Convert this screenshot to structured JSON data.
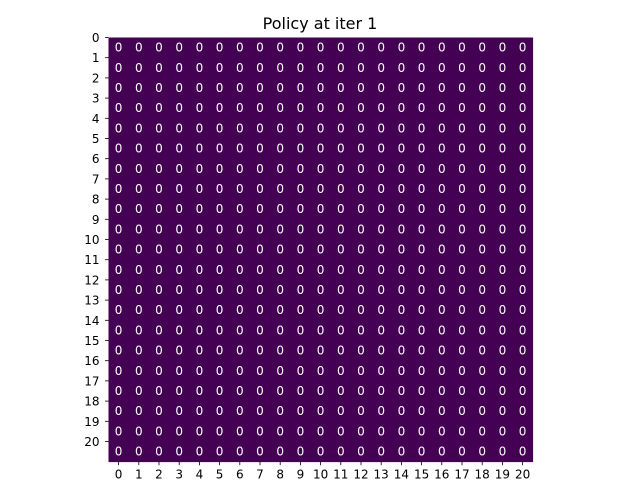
{
  "chart_data": {
    "type": "heatmap",
    "title": "Policy at iter 1",
    "xlabel": "",
    "ylabel": "",
    "x_ticks": [
      "0",
      "1",
      "2",
      "3",
      "4",
      "5",
      "6",
      "7",
      "8",
      "9",
      "10",
      "11",
      "12",
      "13",
      "14",
      "15",
      "16",
      "17",
      "18",
      "19",
      "20"
    ],
    "y_ticks": [
      "0",
      "1",
      "2",
      "3",
      "4",
      "5",
      "6",
      "7",
      "8",
      "9",
      "10",
      "11",
      "12",
      "13",
      "14",
      "15",
      "16",
      "17",
      "18",
      "19",
      "20"
    ],
    "values_note": "",
    "rows": 21,
    "cols": 21,
    "values": [
      [
        0,
        0,
        0,
        0,
        0,
        0,
        0,
        0,
        0,
        0,
        0,
        0,
        0,
        0,
        0,
        0,
        0,
        0,
        0,
        0,
        0
      ],
      [
        0,
        0,
        0,
        0,
        0,
        0,
        0,
        0,
        0,
        0,
        0,
        0,
        0,
        0,
        0,
        0,
        0,
        0,
        0,
        0,
        0
      ],
      [
        0,
        0,
        0,
        0,
        0,
        0,
        0,
        0,
        0,
        0,
        0,
        0,
        0,
        0,
        0,
        0,
        0,
        0,
        0,
        0,
        0
      ],
      [
        0,
        0,
        0,
        0,
        0,
        0,
        0,
        0,
        0,
        0,
        0,
        0,
        0,
        0,
        0,
        0,
        0,
        0,
        0,
        0,
        0
      ],
      [
        0,
        0,
        0,
        0,
        0,
        0,
        0,
        0,
        0,
        0,
        0,
        0,
        0,
        0,
        0,
        0,
        0,
        0,
        0,
        0,
        0
      ],
      [
        0,
        0,
        0,
        0,
        0,
        0,
        0,
        0,
        0,
        0,
        0,
        0,
        0,
        0,
        0,
        0,
        0,
        0,
        0,
        0,
        0
      ],
      [
        0,
        0,
        0,
        0,
        0,
        0,
        0,
        0,
        0,
        0,
        0,
        0,
        0,
        0,
        0,
        0,
        0,
        0,
        0,
        0,
        0
      ],
      [
        0,
        0,
        0,
        0,
        0,
        0,
        0,
        0,
        0,
        0,
        0,
        0,
        0,
        0,
        0,
        0,
        0,
        0,
        0,
        0,
        0
      ],
      [
        0,
        0,
        0,
        0,
        0,
        0,
        0,
        0,
        0,
        0,
        0,
        0,
        0,
        0,
        0,
        0,
        0,
        0,
        0,
        0,
        0
      ],
      [
        0,
        0,
        0,
        0,
        0,
        0,
        0,
        0,
        0,
        0,
        0,
        0,
        0,
        0,
        0,
        0,
        0,
        0,
        0,
        0,
        0
      ],
      [
        0,
        0,
        0,
        0,
        0,
        0,
        0,
        0,
        0,
        0,
        0,
        0,
        0,
        0,
        0,
        0,
        0,
        0,
        0,
        0,
        0
      ],
      [
        0,
        0,
        0,
        0,
        0,
        0,
        0,
        0,
        0,
        0,
        0,
        0,
        0,
        0,
        0,
        0,
        0,
        0,
        0,
        0,
        0
      ],
      [
        0,
        0,
        0,
        0,
        0,
        0,
        0,
        0,
        0,
        0,
        0,
        0,
        0,
        0,
        0,
        0,
        0,
        0,
        0,
        0,
        0
      ],
      [
        0,
        0,
        0,
        0,
        0,
        0,
        0,
        0,
        0,
        0,
        0,
        0,
        0,
        0,
        0,
        0,
        0,
        0,
        0,
        0,
        0
      ],
      [
        0,
        0,
        0,
        0,
        0,
        0,
        0,
        0,
        0,
        0,
        0,
        0,
        0,
        0,
        0,
        0,
        0,
        0,
        0,
        0,
        0
      ],
      [
        0,
        0,
        0,
        0,
        0,
        0,
        0,
        0,
        0,
        0,
        0,
        0,
        0,
        0,
        0,
        0,
        0,
        0,
        0,
        0,
        0
      ],
      [
        0,
        0,
        0,
        0,
        0,
        0,
        0,
        0,
        0,
        0,
        0,
        0,
        0,
        0,
        0,
        0,
        0,
        0,
        0,
        0,
        0
      ],
      [
        0,
        0,
        0,
        0,
        0,
        0,
        0,
        0,
        0,
        0,
        0,
        0,
        0,
        0,
        0,
        0,
        0,
        0,
        0,
        0,
        0
      ],
      [
        0,
        0,
        0,
        0,
        0,
        0,
        0,
        0,
        0,
        0,
        0,
        0,
        0,
        0,
        0,
        0,
        0,
        0,
        0,
        0,
        0
      ],
      [
        0,
        0,
        0,
        0,
        0,
        0,
        0,
        0,
        0,
        0,
        0,
        0,
        0,
        0,
        0,
        0,
        0,
        0,
        0,
        0,
        0
      ],
      [
        0,
        0,
        0,
        0,
        0,
        0,
        0,
        0,
        0,
        0,
        0,
        0,
        0,
        0,
        0,
        0,
        0,
        0,
        0,
        0,
        0
      ]
    ],
    "colormap": "viridis",
    "cell_color": "#440154",
    "label_color": "#ffffff",
    "grid": false,
    "legend": "none"
  }
}
